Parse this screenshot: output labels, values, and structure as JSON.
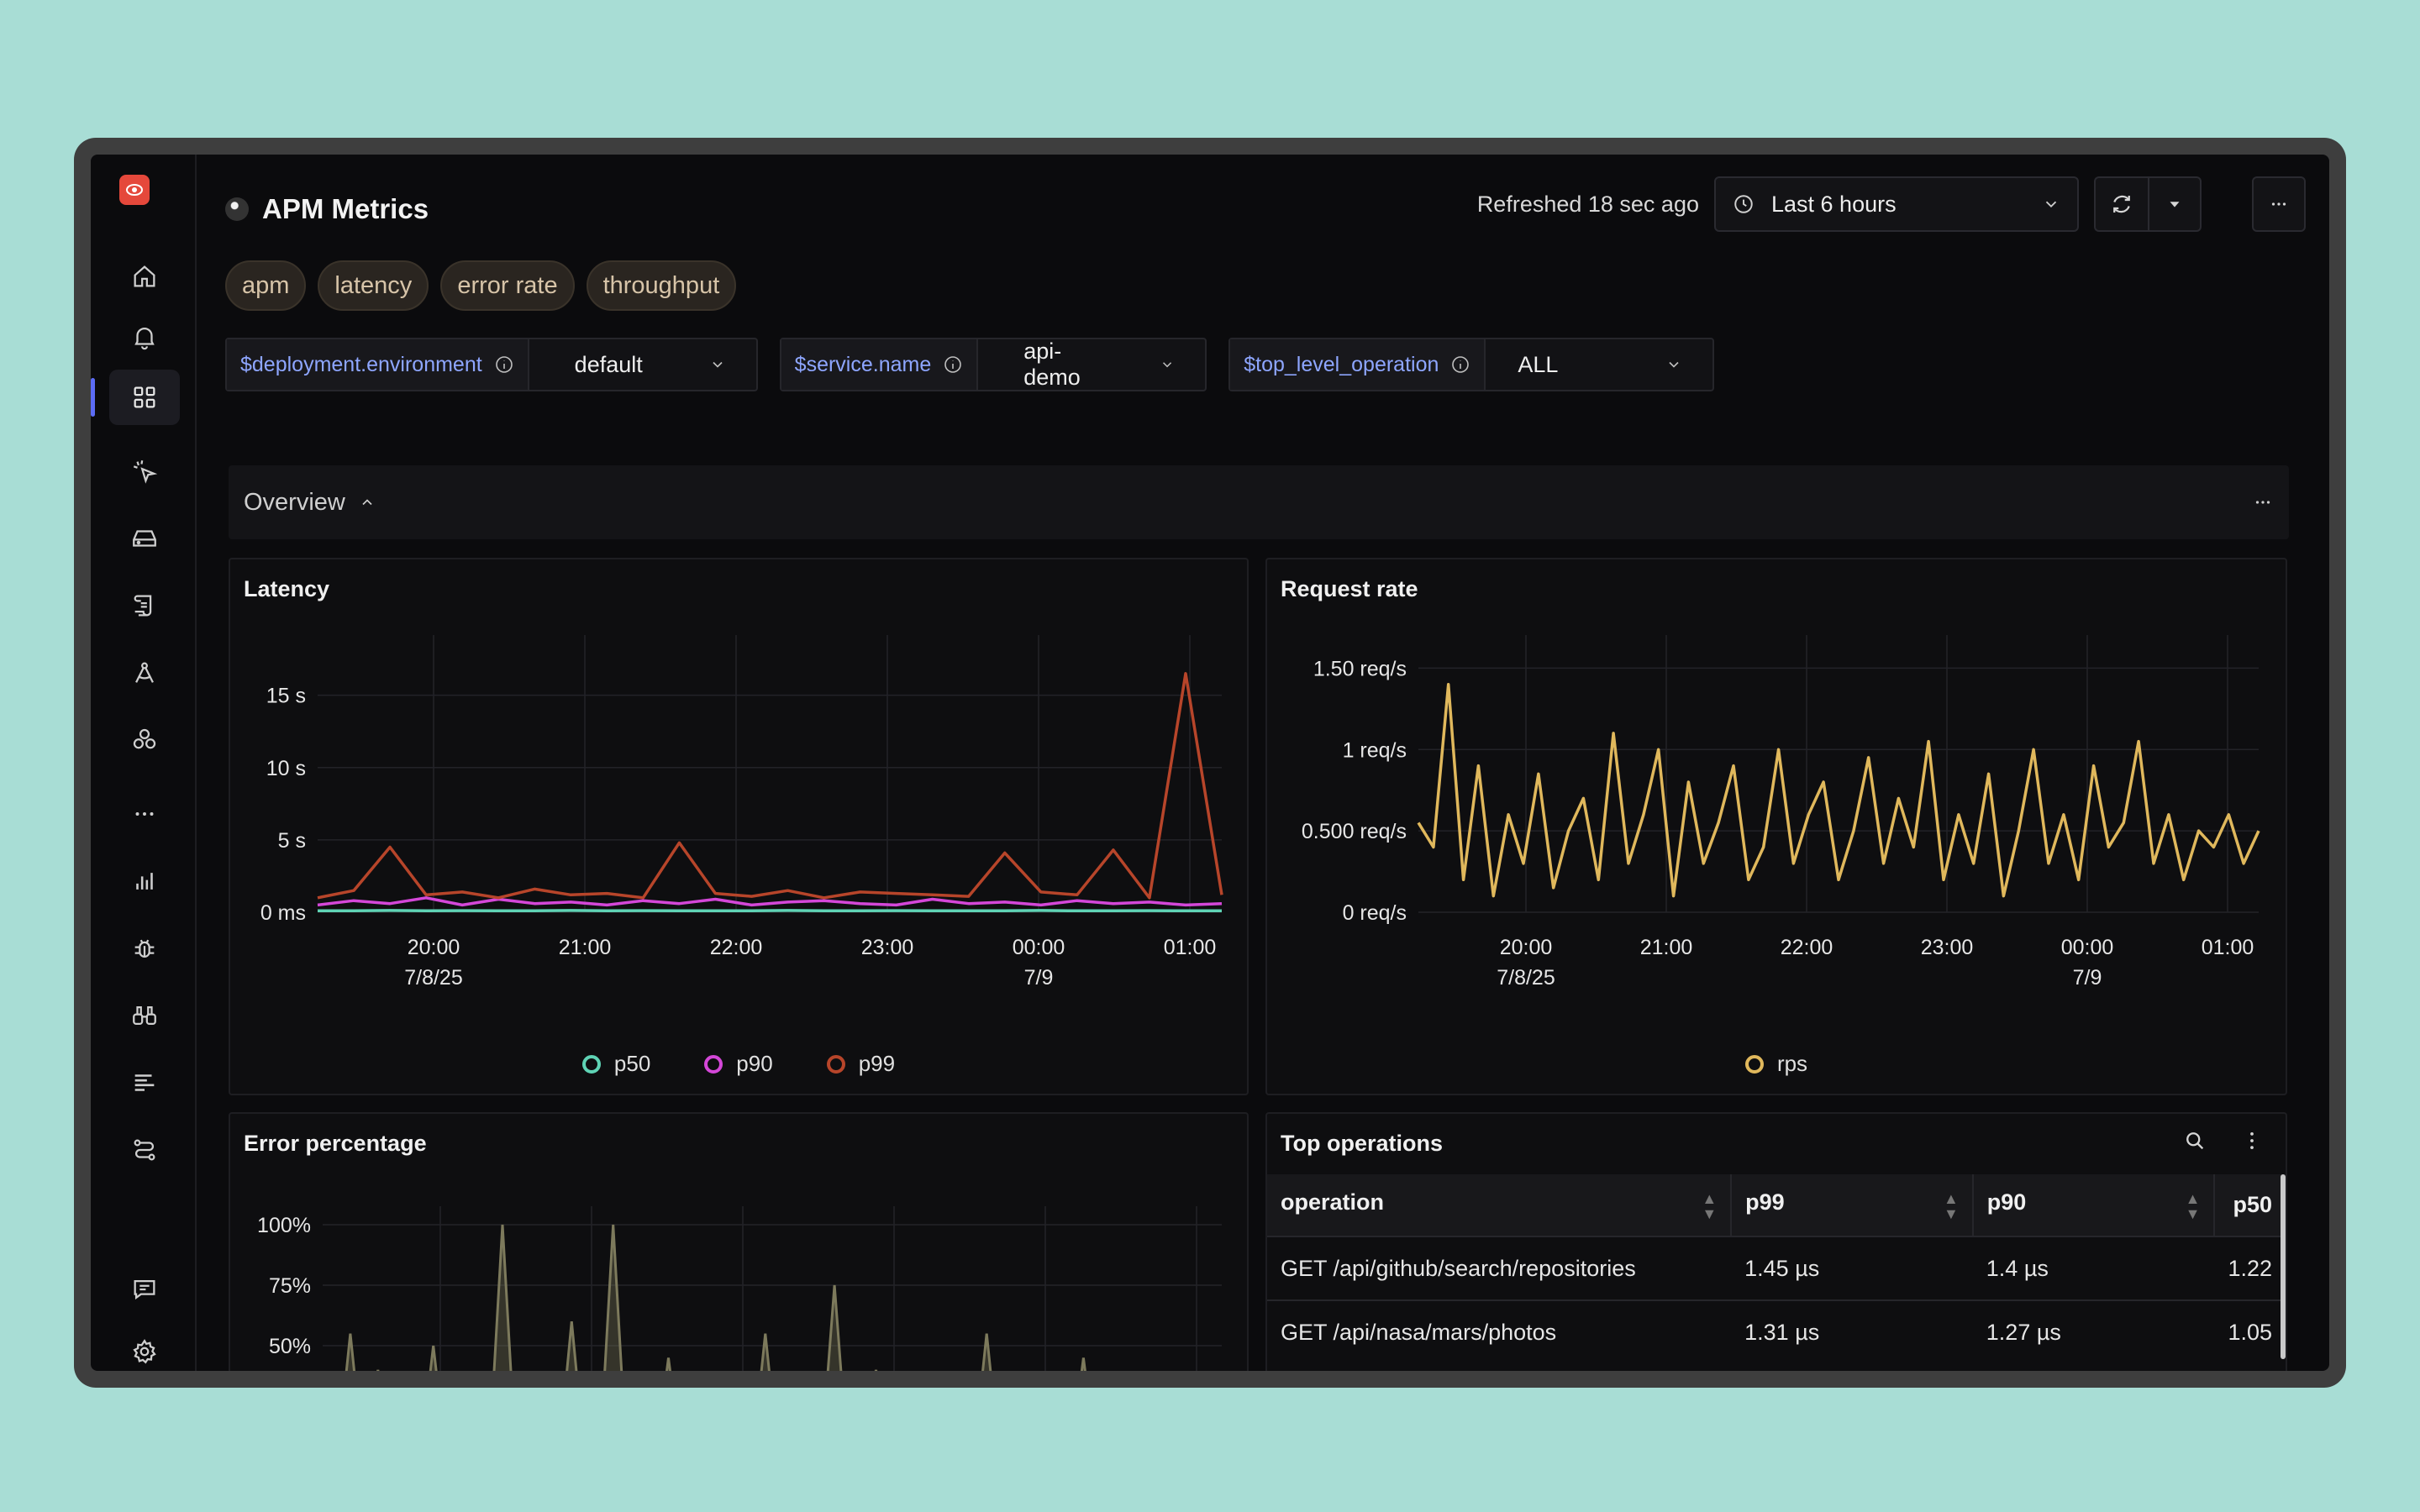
{
  "app": {
    "title": "APM Metrics",
    "refreshed": "Refreshed 18 sec ago",
    "time_range": "Last 6 hours"
  },
  "sidebar": {
    "items": [
      {
        "name": "home-icon"
      },
      {
        "name": "alerts-icon"
      },
      {
        "name": "dashboards-icon",
        "active": true
      },
      {
        "name": "clicks-icon"
      },
      {
        "name": "storage-icon"
      },
      {
        "name": "scroll-icon"
      },
      {
        "name": "compass-icon"
      },
      {
        "name": "cluster-icon"
      },
      {
        "name": "more-dots-icon"
      },
      {
        "name": "bar-chart-icon"
      },
      {
        "name": "bug-icon"
      },
      {
        "name": "binoculars-icon"
      },
      {
        "name": "list-icon"
      },
      {
        "name": "routes-icon"
      },
      {
        "name": "feedback-icon"
      },
      {
        "name": "settings-icon"
      }
    ]
  },
  "tags": [
    "apm",
    "latency",
    "error rate",
    "throughput"
  ],
  "variables": [
    {
      "label": "$deployment.environment",
      "value": "default"
    },
    {
      "label": "$service.name",
      "value": "api-demo"
    },
    {
      "label": "$top_level_operation",
      "value": "ALL"
    }
  ],
  "section": {
    "title": "Overview"
  },
  "panels": {
    "latency": {
      "title": "Latency"
    },
    "request_rate": {
      "title": "Request rate"
    },
    "error_percentage": {
      "title": "Error percentage"
    },
    "top_operations": {
      "title": "Top operations"
    }
  },
  "colors": {
    "p50": "#5fd3b5",
    "p90": "#d447d8",
    "p99": "#b7452a",
    "rps": "#e0b85c",
    "errors": "#7d7a5c",
    "accent": "#5c6cf5"
  },
  "chart_data": [
    {
      "type": "line",
      "title": "Latency",
      "x_ticks": [
        "20:00",
        "21:00",
        "22:00",
        "23:00",
        "00:00",
        "01:00"
      ],
      "x_tick_dates": [
        "7/8/25",
        "",
        "",
        "",
        "7/9",
        ""
      ],
      "y_ticks": [
        "0 ms",
        "5 s",
        "10 s",
        "15 s"
      ],
      "ylim": [
        0,
        18
      ],
      "series": [
        {
          "name": "p50",
          "color": "#5fd3b5",
          "values": [
            0.1,
            0.1,
            0.12,
            0.1,
            0.11,
            0.1,
            0.1,
            0.12,
            0.1,
            0.11,
            0.1,
            0.1,
            0.1,
            0.12,
            0.1,
            0.1,
            0.11,
            0.1,
            0.1,
            0.1,
            0.12,
            0.1,
            0.1,
            0.11,
            0.1,
            0.1
          ]
        },
        {
          "name": "p90",
          "color": "#d447d8",
          "values": [
            0.5,
            0.8,
            0.6,
            1.0,
            0.5,
            0.9,
            0.6,
            0.7,
            0.5,
            0.8,
            0.6,
            0.9,
            0.5,
            0.7,
            0.8,
            0.6,
            0.5,
            0.9,
            0.6,
            0.7,
            0.5,
            0.8,
            0.6,
            0.7,
            0.5,
            0.6
          ]
        },
        {
          "name": "p99",
          "color": "#b7452a",
          "values": [
            1.0,
            1.5,
            4.5,
            1.2,
            1.4,
            1.0,
            1.6,
            1.2,
            1.3,
            1.0,
            4.8,
            1.3,
            1.1,
            1.5,
            1.0,
            1.4,
            1.3,
            1.2,
            1.1,
            4.1,
            1.4,
            1.2,
            4.3,
            1.0,
            16.5,
            1.2
          ]
        }
      ]
    },
    {
      "type": "line",
      "title": "Request rate",
      "x_ticks": [
        "20:00",
        "21:00",
        "22:00",
        "23:00",
        "00:00",
        "01:00"
      ],
      "x_tick_dates": [
        "7/8/25",
        "",
        "",
        "",
        "7/9",
        ""
      ],
      "y_ticks": [
        "0 req/s",
        "0.500 req/s",
        "1 req/s",
        "1.50 req/s"
      ],
      "ylim": [
        0,
        1.6
      ],
      "series": [
        {
          "name": "rps",
          "color": "#e0b85c",
          "values": [
            0.55,
            0.4,
            1.4,
            0.2,
            0.9,
            0.1,
            0.6,
            0.3,
            0.85,
            0.15,
            0.5,
            0.7,
            0.2,
            1.1,
            0.3,
            0.6,
            1.0,
            0.1,
            0.8,
            0.3,
            0.55,
            0.9,
            0.2,
            0.4,
            1.0,
            0.3,
            0.6,
            0.8,
            0.2,
            0.5,
            0.95,
            0.3,
            0.7,
            0.4,
            1.05,
            0.2,
            0.6,
            0.3,
            0.85,
            0.1,
            0.5,
            1.0,
            0.3,
            0.6,
            0.2,
            0.9,
            0.4,
            0.55,
            1.05,
            0.3,
            0.6,
            0.2,
            0.5,
            0.4,
            0.6,
            0.3,
            0.5
          ]
        }
      ]
    },
    {
      "type": "area",
      "title": "Error percentage",
      "y_ticks": [
        "50%",
        "75%",
        "100%"
      ],
      "ylim": [
        0,
        100
      ],
      "series": [
        {
          "name": "errors",
          "color": "#7d7a5c",
          "values": [
            30,
            0,
            55,
            0,
            40,
            0,
            20,
            0,
            50,
            0,
            35,
            0,
            0,
            100,
            0,
            20,
            0,
            0,
            60,
            0,
            0,
            100,
            0,
            25,
            0,
            45,
            0,
            30,
            0,
            20,
            0,
            0,
            55,
            0,
            0,
            20,
            0,
            75,
            0,
            0,
            40,
            0,
            0,
            25,
            0,
            0,
            30,
            0,
            55,
            0,
            30,
            0,
            0,
            20,
            0,
            45,
            0,
            0,
            20,
            0,
            35,
            0,
            0,
            30,
            0,
            10
          ]
        }
      ]
    }
  ],
  "table": {
    "columns": [
      "operation",
      "p99",
      "p90",
      "p50"
    ],
    "rows": [
      [
        "GET /api/github/search/repositories",
        "1.45 µs",
        "1.4 µs",
        "1.22"
      ],
      [
        "GET /api/nasa/mars/photos",
        "1.31 µs",
        "1.27 µs",
        "1.05"
      ]
    ]
  }
}
